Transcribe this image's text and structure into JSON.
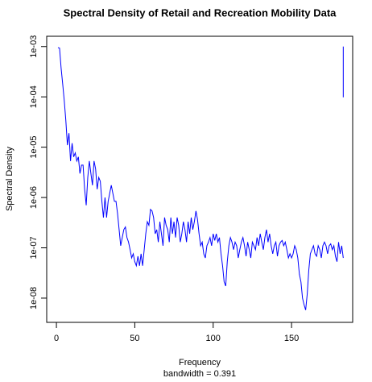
{
  "chart_data": {
    "type": "line",
    "title": "Spectral Density of Retail and Recreation Mobility Data",
    "xlabel": "Frequency",
    "subtitle": "bandwidth = 0.391",
    "ylabel": "Spectral Density",
    "log_y": true,
    "color": "#0000ff",
    "xlim": [
      -6.2,
      189
    ],
    "ylim": [
      0.0016,
      3.3e-09
    ],
    "xticks": [
      0,
      50,
      100,
      150
    ],
    "yticks": [
      {
        "value": 1e-08,
        "label": "1e-08"
      },
      {
        "value": 1e-07,
        "label": "1e-07"
      },
      {
        "value": 1e-06,
        "label": "1e-06"
      },
      {
        "value": 1e-05,
        "label": "1e-05"
      },
      {
        "value": 0.0001,
        "label": "1e-04"
      },
      {
        "value": 0.001,
        "label": "1e-03"
      }
    ],
    "ci_bar": {
      "x": 183,
      "upper": 0.001,
      "lower": 9.8e-05
    },
    "x": [
      1,
      2,
      3,
      4,
      5,
      6,
      7,
      8,
      9,
      10,
      11,
      12,
      13,
      14,
      15,
      16,
      17,
      18,
      19,
      20,
      21,
      22,
      23,
      24,
      25,
      26,
      27,
      28,
      29,
      30,
      31,
      32,
      33,
      34,
      35,
      36,
      37,
      38,
      39,
      40,
      41,
      42,
      43,
      44,
      45,
      46,
      47,
      48,
      49,
      50,
      51,
      52,
      53,
      54,
      55,
      56,
      57,
      58,
      59,
      60,
      61,
      62,
      63,
      64,
      65,
      66,
      67,
      68,
      69,
      70,
      71,
      72,
      73,
      74,
      75,
      76,
      77,
      78,
      79,
      80,
      81,
      82,
      83,
      84,
      85,
      86,
      87,
      88,
      89,
      90,
      91,
      92,
      93,
      94,
      95,
      96,
      97,
      98,
      99,
      100,
      101,
      102,
      103,
      104,
      105,
      106,
      107,
      108,
      109,
      110,
      111,
      112,
      113,
      114,
      115,
      116,
      117,
      118,
      119,
      120,
      121,
      122,
      123,
      124,
      125,
      126,
      127,
      128,
      129,
      130,
      131,
      132,
      133,
      134,
      135,
      136,
      137,
      138,
      139,
      140,
      141,
      142,
      143,
      144,
      145,
      146,
      147,
      148,
      149,
      150,
      151,
      152,
      153,
      154,
      155,
      156,
      157,
      158,
      159,
      160,
      161,
      162,
      163,
      164,
      165,
      166,
      167,
      168,
      169,
      170,
      171,
      172,
      173,
      174,
      175,
      176,
      177,
      178,
      179,
      180,
      181,
      182,
      183
    ],
    "values": [
      0.00095,
      0.00093,
      0.00037,
      0.00018,
      8.4e-05,
      3.4e-05,
      1.1e-05,
      1.9e-05,
      5.3e-06,
      1.2e-05,
      6.4e-06,
      7.7e-06,
      5.3e-06,
      6.4e-06,
      3e-06,
      4.4e-06,
      4.4e-06,
      1.46e-06,
      7e-07,
      2.5e-06,
      5.3e-06,
      3e-06,
      1.75e-06,
      5.3e-06,
      3.7e-06,
      1.46e-06,
      2.5e-06,
      2.1e-06,
      8.4e-07,
      4e-07,
      1e-06,
      4e-07,
      8.4e-07,
      1.21e-06,
      1.75e-06,
      1.21e-06,
      8.4e-07,
      8.4e-07,
      4.8e-07,
      2.3e-07,
      1.1e-07,
      1.6e-07,
      2.3e-07,
      2.6e-07,
      1.6e-07,
      1.3e-07,
      9.2e-08,
      6.3e-08,
      7.6e-08,
      5.3e-08,
      4.4e-08,
      6.8e-08,
      4.4e-08,
      7.6e-08,
      4.4e-08,
      9.2e-08,
      1.9e-07,
      3.3e-07,
      2.8e-07,
      5.8e-07,
      5.4e-07,
      4e-07,
      1.9e-07,
      2.3e-07,
      1.3e-07,
      3.3e-07,
      1.9e-07,
      1.1e-07,
      4e-07,
      2.8e-07,
      2.3e-07,
      1.3e-07,
      4e-07,
      1.9e-07,
      3.3e-07,
      1.6e-07,
      4e-07,
      2.8e-07,
      1.3e-07,
      1.9e-07,
      3.3e-07,
      2.3e-07,
      1.3e-07,
      3.3e-07,
      1.9e-07,
      4e-07,
      2.3e-07,
      3.3e-07,
      5.4e-07,
      3.7e-07,
      1.9e-07,
      1.1e-07,
      1.3e-07,
      7.6e-08,
      6.3e-08,
      1.1e-07,
      1.3e-07,
      1.6e-07,
      1.1e-07,
      1.9e-07,
      1.4e-07,
      1.9e-07,
      1.3e-07,
      1.6e-07,
      7.6e-08,
      4.4e-08,
      2.1e-08,
      1.74e-08,
      5.3e-08,
      1.1e-07,
      1.6e-07,
      1.3e-07,
      9.2e-08,
      1.3e-07,
      1.1e-07,
      6.3e-08,
      9.2e-08,
      1.3e-07,
      1.6e-07,
      1.1e-07,
      6.8e-08,
      1.3e-07,
      9.2e-08,
      6.3e-08,
      1.3e-07,
      1.1e-07,
      9.2e-08,
      1.6e-07,
      1.1e-07,
      1.9e-07,
      1.3e-07,
      9.2e-08,
      1.6e-07,
      2.3e-07,
      1.3e-07,
      1.9e-07,
      1.1e-07,
      7.6e-08,
      1.1e-07,
      1.3e-07,
      6.8e-08,
      1.1e-07,
      1.3e-07,
      1.4e-07,
      1.1e-07,
      1.3e-07,
      9.2e-08,
      6.3e-08,
      7.6e-08,
      6.3e-08,
      7.6e-08,
      1.1e-07,
      9.2e-08,
      6.3e-08,
      3e-08,
      2.1e-08,
      1e-08,
      7.4e-09,
      5.8e-09,
      1.2e-08,
      3.6e-08,
      7.6e-08,
      9.2e-08,
      1.1e-07,
      7.6e-08,
      6.8e-08,
      1.1e-07,
      9.2e-08,
      6.3e-08,
      1.1e-07,
      1.3e-07,
      1.1e-07,
      7.6e-08,
      1.1e-07,
      1.2e-07,
      9.2e-08,
      1.1e-07,
      6.8e-08,
      5.3e-08,
      1.3e-07,
      7.6e-08,
      1.1e-07,
      6.3e-08
    ]
  }
}
